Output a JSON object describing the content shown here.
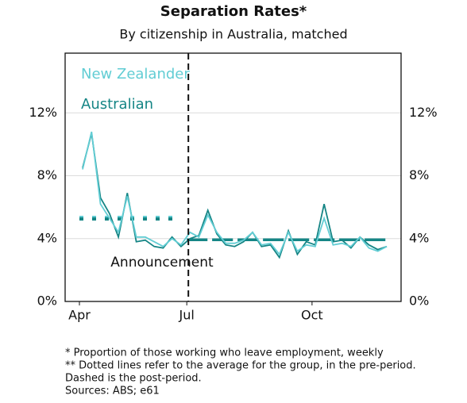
{
  "chart_data": {
    "type": "line",
    "title": "Separation Rates*",
    "subtitle": "By citizenship in Australia, matched",
    "categories": [
      "Apr",
      null,
      null,
      null,
      null,
      null,
      null,
      null,
      null,
      null,
      null,
      null,
      "Jul",
      null,
      null,
      null,
      null,
      null,
      null,
      null,
      null,
      null,
      null,
      null,
      null,
      null,
      "Oct",
      null,
      null,
      null,
      null,
      null,
      null,
      null,
      null
    ],
    "series": [
      {
        "name": "New Zealander",
        "color": "#62cdd4",
        "values": [
          8.4,
          10.8,
          6.2,
          5.3,
          4.4,
          6.7,
          4.1,
          4.1,
          3.8,
          3.5,
          4.0,
          3.6,
          4.4,
          4.1,
          5.5,
          4.4,
          3.7,
          3.7,
          3.9,
          4.4,
          3.6,
          3.7,
          3.0,
          4.4,
          3.2,
          3.6,
          3.5,
          5.3,
          3.6,
          3.7,
          3.5,
          4.1,
          3.4,
          3.2,
          3.5
        ],
        "pre_average": 5.35,
        "post_average": 4.0
      },
      {
        "name": "Australian",
        "color": "#158585",
        "values": [
          8.5,
          10.7,
          6.6,
          5.6,
          4.1,
          6.9,
          3.8,
          3.9,
          3.5,
          3.4,
          4.1,
          3.5,
          4.0,
          4.2,
          5.8,
          4.3,
          3.6,
          3.5,
          3.8,
          4.4,
          3.5,
          3.6,
          2.8,
          4.5,
          3.0,
          3.8,
          3.6,
          6.2,
          3.8,
          3.9,
          3.4,
          4.1,
          3.6,
          3.3,
          3.5
        ],
        "pre_average": 5.25,
        "post_average": 3.85
      }
    ],
    "ylim": [
      0,
      15.8
    ],
    "yticks": [
      {
        "value": 0,
        "label": "0%"
      },
      {
        "value": 4,
        "label": "4%"
      },
      {
        "value": 8,
        "label": "8%"
      },
      {
        "value": 12,
        "label": "12%"
      }
    ],
    "y2lim": [
      0,
      15.8
    ],
    "y2ticks": [
      {
        "value": 0,
        "label": "0%"
      },
      {
        "value": 4,
        "label": "4%"
      },
      {
        "value": 8,
        "label": "8%"
      },
      {
        "value": 12,
        "label": "12%"
      }
    ],
    "grid": true,
    "annotation": "Announcement",
    "footnotes": [
      "* Proportion of those working who leave employment, weekly",
      "** Dotted lines refer to the average for the group, in the pre-period.",
      "Dashed is the post-period.",
      "Sources: ABS; e61"
    ]
  }
}
